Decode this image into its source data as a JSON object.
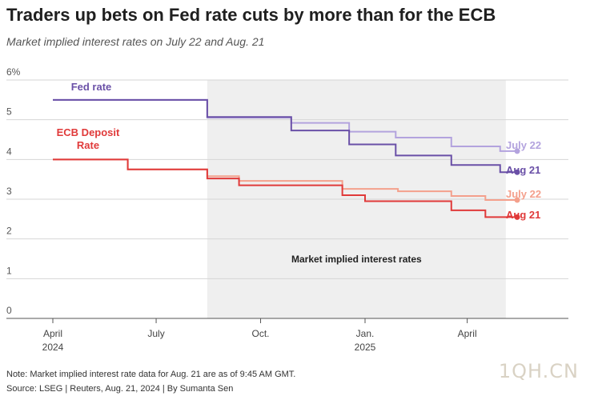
{
  "header": {
    "title": "Traders up bets on Fed rate cuts by more than for the ECB",
    "subtitle": "Market implied interest rates on July 22 and Aug. 21"
  },
  "footer": {
    "note": "Note: Market implied interest rate data for Aug. 21 are as of 9:45 AM GMT.",
    "source": "Source: LSEG | Reuters, Aug. 21, 2024 | By Sumanta Sen"
  },
  "watermark": "1QH.CN",
  "colors": {
    "fed_aug": "#6a50a7",
    "fed_jul": "#b3a3de",
    "ecb_aug": "#e03a3a",
    "ecb_jul": "#f4a08c",
    "shade": "#efefef",
    "grid": "#d6d6d6"
  },
  "chart_data": {
    "type": "line",
    "title": "Traders up bets on Fed rate cuts by more than for the ECB",
    "subtitle": "Market implied interest rates on July 22 and Aug. 21",
    "ylim": [
      0,
      6
    ],
    "xlim": [
      "2024-04-01",
      "2025-06-15"
    ],
    "y_ticks": [
      {
        "value": 0,
        "label": "0"
      },
      {
        "value": 1,
        "label": "1"
      },
      {
        "value": 2,
        "label": "2"
      },
      {
        "value": 3,
        "label": "3"
      },
      {
        "value": 4,
        "label": "4"
      },
      {
        "value": 5,
        "label": "5"
      },
      {
        "value": 6,
        "label": "6%"
      }
    ],
    "x_ticks": [
      {
        "date": "2024-04-01",
        "label": "April",
        "label2": "2024"
      },
      {
        "date": "2024-07-01",
        "label": "July",
        "label2": ""
      },
      {
        "date": "2024-10-01",
        "label": "Oct.",
        "label2": ""
      },
      {
        "date": "2025-01-01",
        "label": "Jan.",
        "label2": "2025"
      },
      {
        "date": "2025-04-01",
        "label": "April",
        "label2": ""
      }
    ],
    "grid": true,
    "shaded_region": {
      "start": "2024-08-15",
      "end": "2025-05-05",
      "label": "Market implied interest rates"
    },
    "group_labels": [
      {
        "text": "Fed rate",
        "color": "#6a50a7"
      },
      {
        "text": "ECB Deposit",
        "text2": "Rate",
        "color": "#e03a3a"
      }
    ],
    "series": [
      {
        "name": "July 22",
        "group": "Fed rate",
        "color": "#b3a3de",
        "step": true,
        "points": [
          {
            "x": "2024-04-01",
            "y": 5.5
          },
          {
            "x": "2024-08-15",
            "y": 5.05
          },
          {
            "x": "2024-10-28",
            "y": 4.92
          },
          {
            "x": "2024-12-18",
            "y": 4.7
          },
          {
            "x": "2025-01-28",
            "y": 4.55
          },
          {
            "x": "2025-03-18",
            "y": 4.33
          },
          {
            "x": "2025-04-30",
            "y": 4.21
          },
          {
            "x": "2025-05-15",
            "y": 4.21
          }
        ]
      },
      {
        "name": "Aug 21",
        "group": "Fed rate",
        "color": "#6a50a7",
        "step": true,
        "points": [
          {
            "x": "2024-04-01",
            "y": 5.5
          },
          {
            "x": "2024-08-15",
            "y": 5.07
          },
          {
            "x": "2024-10-28",
            "y": 4.73
          },
          {
            "x": "2024-12-18",
            "y": 4.38
          },
          {
            "x": "2025-01-28",
            "y": 4.1
          },
          {
            "x": "2025-03-18",
            "y": 3.86
          },
          {
            "x": "2025-04-30",
            "y": 3.68
          },
          {
            "x": "2025-05-15",
            "y": 3.68
          }
        ]
      },
      {
        "name": "July 22",
        "group": "ECB Deposit Rate",
        "color": "#f4a08c",
        "step": true,
        "points": [
          {
            "x": "2024-04-01",
            "y": 4.0
          },
          {
            "x": "2024-06-06",
            "y": 3.75
          },
          {
            "x": "2024-08-15",
            "y": 3.58
          },
          {
            "x": "2024-09-12",
            "y": 3.46
          },
          {
            "x": "2024-12-12",
            "y": 3.26
          },
          {
            "x": "2025-01-30",
            "y": 3.2
          },
          {
            "x": "2025-03-18",
            "y": 3.08
          },
          {
            "x": "2025-04-17",
            "y": 2.98
          },
          {
            "x": "2025-05-15",
            "y": 2.98
          }
        ]
      },
      {
        "name": "Aug 21",
        "group": "ECB Deposit Rate",
        "color": "#e03a3a",
        "step": true,
        "points": [
          {
            "x": "2024-04-01",
            "y": 4.0
          },
          {
            "x": "2024-06-06",
            "y": 3.75
          },
          {
            "x": "2024-08-15",
            "y": 3.52
          },
          {
            "x": "2024-09-12",
            "y": 3.35
          },
          {
            "x": "2024-10-28",
            "y": 3.35
          },
          {
            "x": "2024-12-12",
            "y": 3.1
          },
          {
            "x": "2025-01-01",
            "y": 2.95
          },
          {
            "x": "2025-03-18",
            "y": 2.72
          },
          {
            "x": "2025-04-17",
            "y": 2.55
          },
          {
            "x": "2025-05-15",
            "y": 2.55
          }
        ]
      }
    ]
  }
}
